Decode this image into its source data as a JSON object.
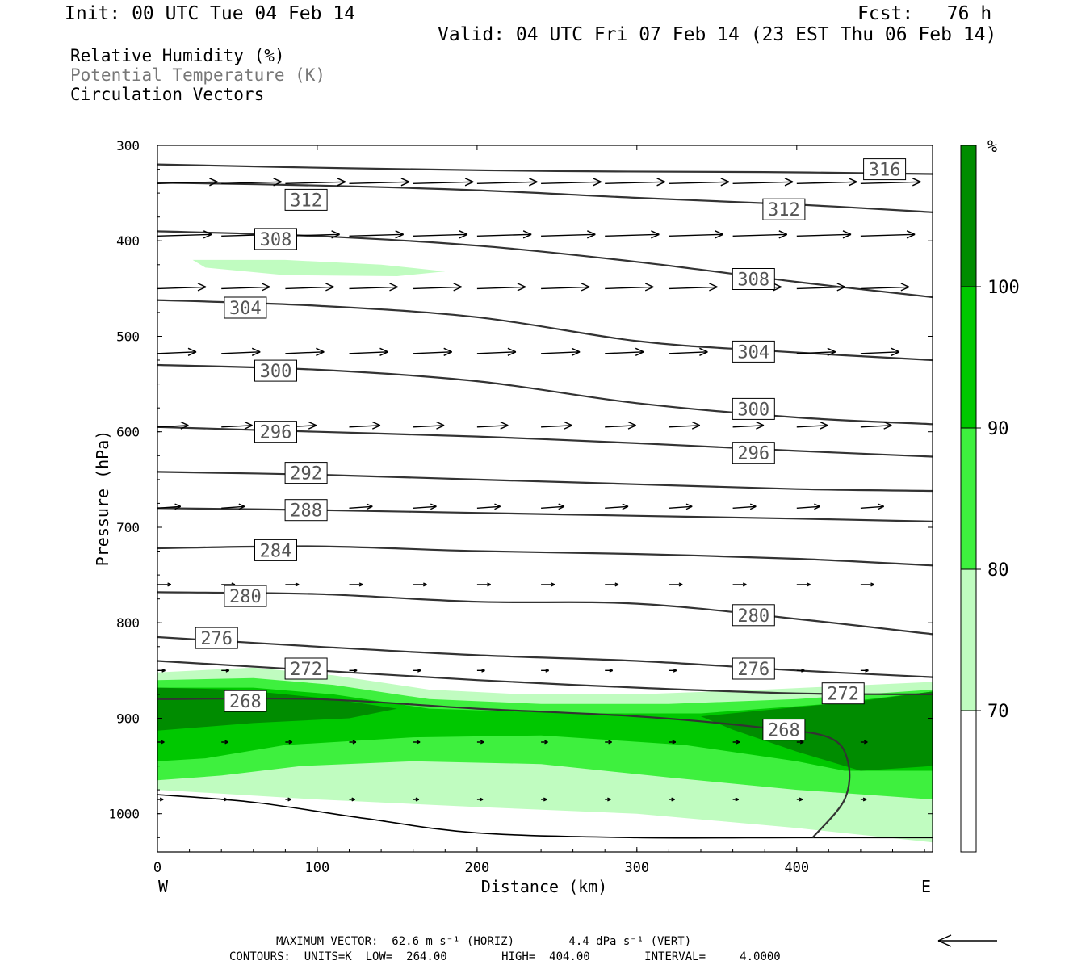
{
  "header": {
    "init": "Init: 00 UTC Tue 04 Feb 14",
    "fcst": "Fcst:   76 h",
    "valid": "Valid: 04 UTC Fri 07 Feb 14 (23 EST Thu 06 Feb 14)"
  },
  "legend": {
    "rh": "Relative Humidity (%)",
    "theta": "Potential Temperature (K)",
    "vectors": "Circulation Vectors"
  },
  "footer": {
    "line1": "MAXIMUM VECTOR:  62.6 m s⁻¹ (HORIZ)        4.4 dPa s⁻¹ (VERT)",
    "line2": "CONTOURS:  UNITS=K  LOW=  264.00        HIGH=  404.00        INTERVAL=     4.0000"
  },
  "colors": {
    "fill_70": "#c0fcc0",
    "fill_80": "#3ef03e",
    "fill_90": "#00c800",
    "fill_100": "#008c00",
    "contour": "#333333",
    "label_text": "#555555"
  },
  "chart_data": {
    "type": "cross-section",
    "xlabel": "Distance (km)",
    "ylabel": "Pressure (hPa)",
    "xlim": [
      0,
      485
    ],
    "ylim": [
      1040,
      300
    ],
    "x_ticks": [
      "0",
      "100",
      "200",
      "300",
      "400"
    ],
    "x_tick_values": [
      0,
      100,
      200,
      300,
      400
    ],
    "y_ticks": [
      "300",
      "400",
      "500",
      "600",
      "700",
      "800",
      "900",
      "1000"
    ],
    "y_tick_values": [
      300,
      400,
      500,
      600,
      700,
      800,
      900,
      1000
    ],
    "left_end_label": "W",
    "right_end_label": "E",
    "colorbar": {
      "unit": "%",
      "levels": [
        "70",
        "80",
        "90",
        "100"
      ],
      "level_values": [
        70,
        80,
        90,
        100
      ]
    },
    "rh_regions": [
      {
        "level": 70,
        "points": [
          [
            0,
            852
          ],
          [
            60,
            847
          ],
          [
            110,
            855
          ],
          [
            170,
            870
          ],
          [
            230,
            875
          ],
          [
            300,
            875
          ],
          [
            380,
            870
          ],
          [
            485,
            862
          ],
          [
            485,
            1030
          ],
          [
            400,
            1015
          ],
          [
            300,
            1000
          ],
          [
            200,
            993
          ],
          [
            100,
            985
          ],
          [
            0,
            975
          ]
        ]
      },
      {
        "level": 70,
        "points": [
          [
            22,
            420
          ],
          [
            80,
            420
          ],
          [
            140,
            425
          ],
          [
            180,
            432
          ],
          [
            150,
            437
          ],
          [
            80,
            436
          ],
          [
            30,
            428
          ]
        ]
      },
      {
        "level": 80,
        "points": [
          [
            0,
            860
          ],
          [
            60,
            858
          ],
          [
            110,
            865
          ],
          [
            170,
            880
          ],
          [
            240,
            885
          ],
          [
            320,
            885
          ],
          [
            400,
            880
          ],
          [
            485,
            870
          ],
          [
            485,
            985
          ],
          [
            400,
            975
          ],
          [
            320,
            962
          ],
          [
            240,
            948
          ],
          [
            160,
            945
          ],
          [
            90,
            950
          ],
          [
            40,
            960
          ],
          [
            0,
            965
          ]
        ]
      },
      {
        "level": 90,
        "points": [
          [
            0,
            868
          ],
          [
            60,
            868
          ],
          [
            110,
            875
          ],
          [
            170,
            890
          ],
          [
            260,
            895
          ],
          [
            340,
            895
          ],
          [
            420,
            885
          ],
          [
            485,
            872
          ],
          [
            485,
            955
          ],
          [
            430,
            955
          ],
          [
            400,
            945
          ],
          [
            330,
            928
          ],
          [
            240,
            918
          ],
          [
            160,
            920
          ],
          [
            80,
            928
          ],
          [
            30,
            942
          ],
          [
            0,
            945
          ]
        ]
      },
      {
        "level": 100,
        "points": [
          [
            0,
            868
          ],
          [
            50,
            870
          ],
          [
            110,
            880
          ],
          [
            150,
            890
          ],
          [
            120,
            900
          ],
          [
            60,
            905
          ],
          [
            0,
            913
          ]
        ]
      },
      {
        "level": 100,
        "points": [
          [
            340,
            898
          ],
          [
            390,
            890
          ],
          [
            440,
            882
          ],
          [
            485,
            872
          ],
          [
            485,
            950
          ],
          [
            440,
            955
          ],
          [
            400,
            935
          ],
          [
            360,
            912
          ]
        ]
      }
    ],
    "theta_contours": [
      {
        "value": 316,
        "points": [
          [
            0,
            320
          ],
          [
            120,
            324
          ],
          [
            250,
            327
          ],
          [
            380,
            328
          ],
          [
            485,
            330
          ]
        ],
        "labels": [
          [
            455,
            325
          ]
        ]
      },
      {
        "value": 312,
        "points": [
          [
            0,
            339
          ],
          [
            100,
            342
          ],
          [
            200,
            347
          ],
          [
            300,
            355
          ],
          [
            400,
            362
          ],
          [
            485,
            370
          ]
        ],
        "labels": [
          [
            93,
            357
          ],
          [
            392,
            367
          ]
        ]
      },
      {
        "value": 308,
        "points": [
          [
            0,
            390
          ],
          [
            100,
            395
          ],
          [
            200,
            405
          ],
          [
            300,
            422
          ],
          [
            400,
            443
          ],
          [
            485,
            459
          ]
        ],
        "labels": [
          [
            74,
            398
          ],
          [
            373,
            440
          ]
        ]
      },
      {
        "value": 304,
        "points": [
          [
            0,
            462
          ],
          [
            100,
            468
          ],
          [
            200,
            480
          ],
          [
            300,
            505
          ],
          [
            380,
            515
          ],
          [
            485,
            525
          ]
        ],
        "labels": [
          [
            55,
            470
          ],
          [
            373,
            516
          ]
        ]
      },
      {
        "value": 300,
        "points": [
          [
            0,
            530
          ],
          [
            100,
            535
          ],
          [
            200,
            547
          ],
          [
            300,
            570
          ],
          [
            400,
            585
          ],
          [
            485,
            592
          ]
        ],
        "labels": [
          [
            74,
            536
          ],
          [
            373,
            576
          ]
        ]
      },
      {
        "value": 296,
        "points": [
          [
            0,
            595
          ],
          [
            100,
            600
          ],
          [
            200,
            605
          ],
          [
            300,
            612
          ],
          [
            400,
            620
          ],
          [
            485,
            626
          ]
        ],
        "labels": [
          [
            74,
            600
          ],
          [
            373,
            622
          ]
        ]
      },
      {
        "value": 292,
        "points": [
          [
            0,
            642
          ],
          [
            100,
            645
          ],
          [
            200,
            650
          ],
          [
            300,
            655
          ],
          [
            400,
            660
          ],
          [
            485,
            662
          ]
        ],
        "labels": [
          [
            93,
            643
          ]
        ]
      },
      {
        "value": 288,
        "points": [
          [
            0,
            680
          ],
          [
            100,
            682
          ],
          [
            200,
            685
          ],
          [
            300,
            688
          ],
          [
            400,
            691
          ],
          [
            485,
            694
          ]
        ],
        "labels": [
          [
            93,
            682
          ]
        ]
      },
      {
        "value": 284,
        "points": [
          [
            0,
            722
          ],
          [
            100,
            720
          ],
          [
            200,
            725
          ],
          [
            300,
            728
          ],
          [
            400,
            733
          ],
          [
            485,
            740
          ]
        ],
        "labels": [
          [
            74,
            724
          ]
        ]
      },
      {
        "value": 280,
        "points": [
          [
            0,
            768
          ],
          [
            100,
            770
          ],
          [
            200,
            778
          ],
          [
            300,
            780
          ],
          [
            400,
            796
          ],
          [
            485,
            812
          ]
        ],
        "labels": [
          [
            55,
            772
          ],
          [
            373,
            792
          ]
        ]
      },
      {
        "value": 276,
        "points": [
          [
            0,
            815
          ],
          [
            100,
            825
          ],
          [
            200,
            834
          ],
          [
            300,
            840
          ],
          [
            400,
            850
          ],
          [
            485,
            857
          ]
        ],
        "labels": [
          [
            37,
            816
          ],
          [
            373,
            848
          ]
        ]
      },
      {
        "value": 272,
        "points": [
          [
            0,
            840
          ],
          [
            100,
            850
          ],
          [
            200,
            860
          ],
          [
            300,
            868
          ],
          [
            400,
            874
          ],
          [
            485,
            875
          ]
        ],
        "labels": [
          [
            93,
            848
          ],
          [
            429,
            874
          ]
        ]
      },
      {
        "value": 268,
        "points": [
          [
            0,
            880
          ],
          [
            100,
            880
          ],
          [
            200,
            890
          ],
          [
            300,
            898
          ],
          [
            380,
            910
          ],
          [
            420,
            920
          ],
          [
            432,
            945
          ],
          [
            430,
            985
          ],
          [
            410,
            1025
          ]
        ],
        "labels": [
          [
            55,
            882
          ],
          [
            392,
            912
          ]
        ]
      }
    ],
    "surface": {
      "points": [
        [
          0,
          980
        ],
        [
          60,
          988
        ],
        [
          130,
          1005
        ],
        [
          200,
          1020
        ],
        [
          300,
          1025
        ],
        [
          400,
          1025
        ],
        [
          485,
          1025
        ]
      ]
    },
    "vector_rows": [
      {
        "p": 340,
        "x": [
          0,
          40,
          80,
          120,
          160,
          200,
          240,
          280,
          320,
          360,
          400,
          440
        ],
        "u": 62,
        "v": 1
      },
      {
        "p": 395,
        "x": [
          0,
          40,
          80,
          120,
          160,
          200,
          240,
          280,
          320,
          360,
          400,
          440
        ],
        "u": 56,
        "v": 1
      },
      {
        "p": 450,
        "x": [
          0,
          40,
          80,
          120,
          160,
          200,
          240,
          280,
          320,
          360,
          400,
          440
        ],
        "u": 50,
        "v": 1
      },
      {
        "p": 518,
        "x": [
          0,
          40,
          80,
          120,
          160,
          200,
          240,
          280,
          320,
          360,
          400,
          440
        ],
        "u": 40,
        "v": 1
      },
      {
        "p": 595,
        "x": [
          0,
          40,
          80,
          120,
          160,
          200,
          240,
          280,
          320,
          360,
          400,
          440
        ],
        "u": 32,
        "v": 1
      },
      {
        "p": 680,
        "x": [
          0,
          40,
          80,
          120,
          160,
          200,
          240,
          280,
          320,
          360,
          400,
          440
        ],
        "u": 24,
        "v": 1
      },
      {
        "p": 760,
        "x": [
          0,
          40,
          80,
          120,
          160,
          200,
          240,
          280,
          320,
          360,
          400,
          440
        ],
        "u": 14,
        "v": 0
      },
      {
        "p": 850,
        "x": [
          0,
          40,
          80,
          120,
          160,
          200,
          240,
          280,
          320,
          360,
          400,
          440
        ],
        "u": 8,
        "v": 0
      },
      {
        "p": 925,
        "x": [
          0,
          40,
          80,
          120,
          160,
          200,
          240,
          280,
          320,
          360,
          400,
          440
        ],
        "u": 7,
        "v": 0
      },
      {
        "p": 985,
        "x": [
          0,
          40,
          80,
          120,
          160,
          200,
          240,
          280,
          320,
          360,
          400,
          440
        ],
        "u": 6,
        "v": 0
      }
    ]
  }
}
